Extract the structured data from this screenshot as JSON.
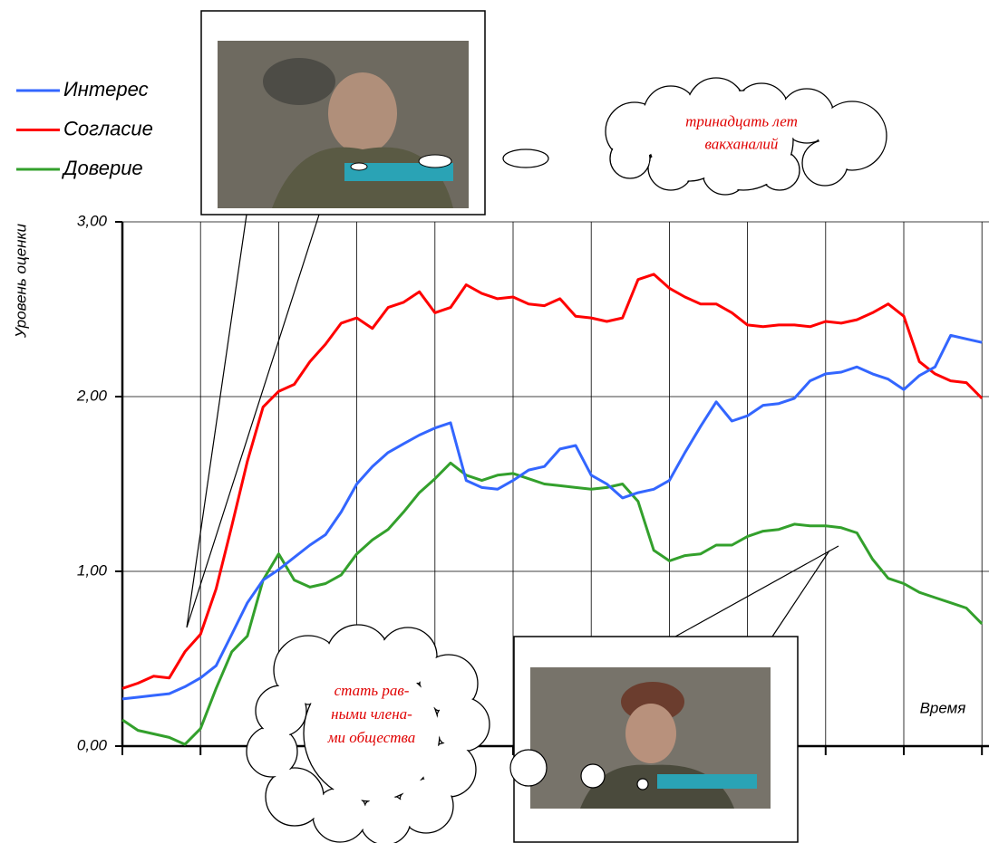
{
  "chart_data": {
    "type": "line",
    "y_label": "Уровень оценки",
    "x_label": "Время",
    "x": [
      0,
      2,
      4,
      6,
      8,
      10,
      12,
      14,
      16,
      18,
      20,
      22,
      24,
      26,
      28,
      30,
      32,
      34,
      36,
      38,
      40,
      42,
      44,
      46,
      48,
      50,
      52,
      54,
      56,
      58,
      60,
      62,
      64,
      66,
      68,
      70,
      72,
      74,
      76,
      78,
      80,
      82,
      84,
      86,
      88,
      90,
      92,
      94,
      96,
      98,
      100,
      102,
      104,
      106,
      108,
      110
    ],
    "xlim": [
      0,
      111
    ],
    "xticks": [
      0,
      10,
      20,
      30,
      40,
      50,
      60,
      70,
      80,
      90,
      100,
      110
    ],
    "ylim": [
      0,
      3
    ],
    "yticks": [
      {
        "value": 0,
        "label": "0,00"
      },
      {
        "value": 1,
        "label": "1,00"
      },
      {
        "value": 2,
        "label": "2,00"
      },
      {
        "value": 3,
        "label": "3,00"
      }
    ],
    "grid": true,
    "legend": "top-left",
    "series": [
      {
        "name": "Интерес",
        "color": "#3366ff",
        "values": [
          0.27,
          0.28,
          0.29,
          0.3,
          0.34,
          0.39,
          0.46,
          0.64,
          0.82,
          0.95,
          1.01,
          1.08,
          1.15,
          1.21,
          1.34,
          1.5,
          1.6,
          1.68,
          1.73,
          1.78,
          1.82,
          1.85,
          1.52,
          1.48,
          1.47,
          1.52,
          1.58,
          1.6,
          1.7,
          1.72,
          1.55,
          1.5,
          1.42,
          1.45,
          1.47,
          1.52,
          1.68,
          1.83,
          1.97,
          1.86,
          1.89,
          1.95,
          1.96,
          1.99,
          2.09,
          2.13,
          2.14,
          2.17,
          2.13,
          2.1,
          2.04,
          2.12,
          2.17,
          2.35,
          2.33,
          2.31
        ]
      },
      {
        "name": "Согласие",
        "color": "#ff0000",
        "values": [
          0.33,
          0.36,
          0.4,
          0.39,
          0.54,
          0.64,
          0.9,
          1.26,
          1.63,
          1.94,
          2.03,
          2.07,
          2.2,
          2.3,
          2.42,
          2.45,
          2.39,
          2.51,
          2.54,
          2.6,
          2.48,
          2.51,
          2.64,
          2.59,
          2.56,
          2.57,
          2.53,
          2.52,
          2.56,
          2.46,
          2.45,
          2.43,
          2.45,
          2.67,
          2.7,
          2.62,
          2.57,
          2.53,
          2.53,
          2.48,
          2.41,
          2.4,
          2.41,
          2.41,
          2.4,
          2.43,
          2.42,
          2.44,
          2.48,
          2.53,
          2.46,
          2.2,
          2.13,
          2.09,
          2.08,
          1.99
        ]
      },
      {
        "name": "Доверие",
        "color": "#33a02c",
        "values": [
          0.15,
          0.09,
          0.07,
          0.05,
          0.01,
          0.1,
          0.33,
          0.54,
          0.63,
          0.95,
          1.1,
          0.95,
          0.91,
          0.93,
          0.98,
          1.1,
          1.18,
          1.24,
          1.34,
          1.45,
          1.53,
          1.62,
          1.55,
          1.52,
          1.55,
          1.56,
          1.53,
          1.5,
          1.49,
          1.48,
          1.47,
          1.48,
          1.5,
          1.4,
          1.12,
          1.06,
          1.09,
          1.1,
          1.15,
          1.15,
          1.2,
          1.23,
          1.24,
          1.27,
          1.26,
          1.26,
          1.25,
          1.22,
          1.07,
          0.96,
          0.93,
          0.88,
          0.85,
          0.82,
          0.79,
          0.7
        ]
      }
    ],
    "annotations": [
      {
        "lines": [
          "тринадцать лет",
          "вакханалий"
        ]
      },
      {
        "lines": [
          "стать рав-",
          "ными члена-",
          "ми общества"
        ]
      }
    ]
  }
}
